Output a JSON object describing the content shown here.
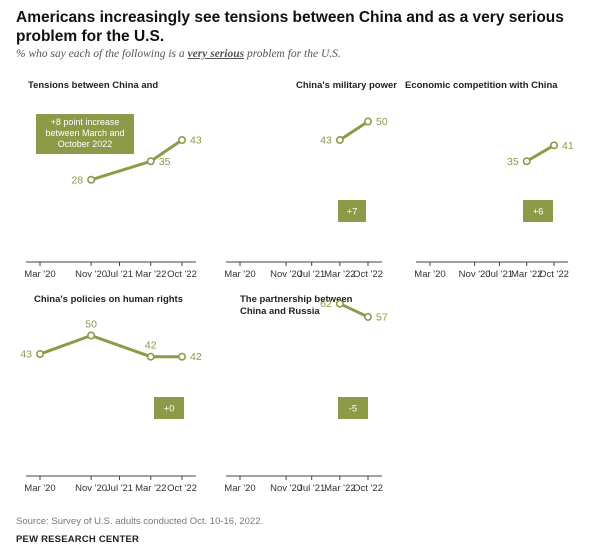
{
  "header": {
    "title": "Americans increasingly see tensions between China and                 as a very serious problem for the U.S.",
    "subtitle_pre": "% who say each of the following is a ",
    "subtitle_em": "very serious",
    "subtitle_post": " problem for the U.S."
  },
  "footer": {
    "source": "Source: Survey of U.S. adults conducted Oct. 10-16, 2022.",
    "brand": "PEW RESEARCH CENTER"
  },
  "colors": {
    "line": "#8d9a47",
    "label": "#8d9a47",
    "badge_bg": "#8d9a47",
    "badge_text": "#ffffff",
    "axis": "#444444"
  },
  "chart_data": [
    {
      "type": "line",
      "title": "Tensions between China and",
      "x_ticks": [
        "Mar '20",
        "Nov '20",
        "Jul '21",
        "Mar '22",
        "Oct '22"
      ],
      "x": [
        "Nov '20",
        "Mar '22",
        "Oct '22"
      ],
      "values": [
        28,
        35,
        43
      ],
      "ylim": [
        0,
        100
      ],
      "annotation": "+8 point increase between March and October 2022"
    },
    {
      "type": "line",
      "title": "China's military power",
      "x_ticks": [
        "Mar '20",
        "Nov '20",
        "Jul '21",
        "Mar '22",
        "Oct '22"
      ],
      "x": [
        "Mar '22",
        "Oct '22"
      ],
      "values": [
        43,
        50
      ],
      "ylim": [
        0,
        100
      ],
      "annotation": "+7"
    },
    {
      "type": "line",
      "title": "Economic competition with China",
      "x_ticks": [
        "Mar '20",
        "Nov '20",
        "Jul '21",
        "Mar '22",
        "Oct '22"
      ],
      "x": [
        "Mar '22",
        "Oct '22"
      ],
      "values": [
        35,
        41
      ],
      "ylim": [
        0,
        100
      ],
      "annotation": "+6"
    },
    {
      "type": "line",
      "title": "China's policies on human rights",
      "x_ticks": [
        "Mar '20",
        "Nov '20",
        "Jul '21",
        "Mar '22",
        "Oct '22"
      ],
      "x": [
        "Mar '20",
        "Nov '20",
        "Mar '22",
        "Oct '22"
      ],
      "values": [
        43,
        50,
        42,
        42
      ],
      "ylim": [
        0,
        100
      ],
      "annotation": "+0"
    },
    {
      "type": "line",
      "title": "The partnership between China and Russia",
      "x_ticks": [
        "Mar '20",
        "Nov '20",
        "Jul '21",
        "Mar '22",
        "Oct '22"
      ],
      "x": [
        "Mar '22",
        "Oct '22"
      ],
      "values": [
        62,
        57
      ],
      "ylim": [
        0,
        100
      ],
      "annotation": "-5"
    }
  ]
}
